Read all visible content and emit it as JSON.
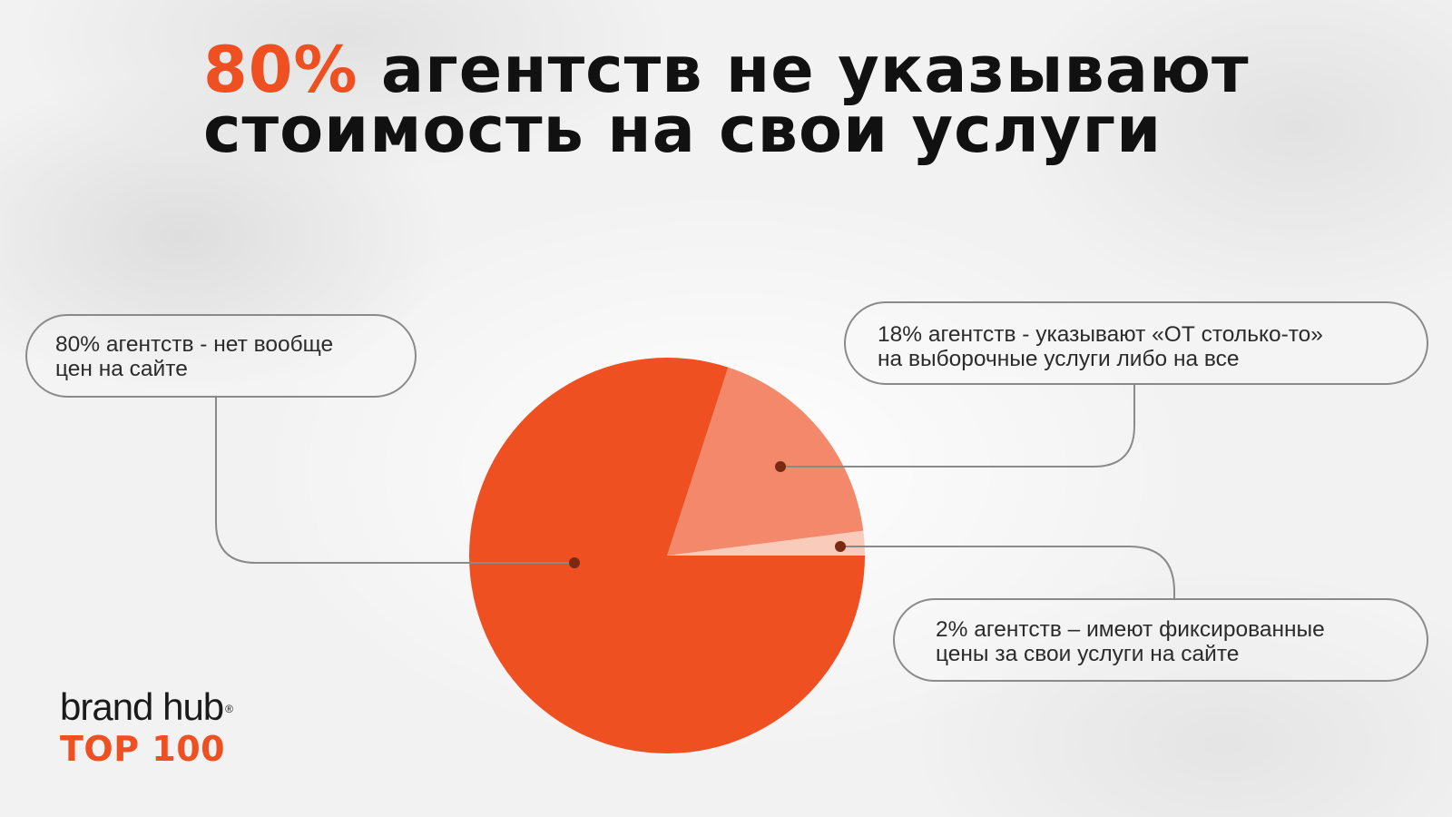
{
  "header": {
    "title_accent": "80%",
    "title_line1_rest": " агентств не указывают",
    "title_line2": "стоимость на свои услуги"
  },
  "chart_data": {
    "type": "pie",
    "slices": [
      {
        "key": "no-prices",
        "value": 80,
        "color": "#ee5022"
      },
      {
        "key": "from-prices",
        "value": 18,
        "color": "#f3896a"
      },
      {
        "key": "fixed-prices",
        "value": 2,
        "color": "#f8cbbb"
      }
    ],
    "annotations": [
      {
        "slice": "no-prices",
        "line1": "80% агентств - нет вообще",
        "line2": "цен на сайте"
      },
      {
        "slice": "from-prices",
        "line1": "18% агентств - указывают «ОТ столько-то»",
        "line2": "на выборочные услуги либо на все"
      },
      {
        "slice": "fixed-prices",
        "line1": "2% агентств – имеют фиксированные",
        "line2": "цены за свои услуги на сайте"
      }
    ],
    "colors": {
      "leader_line": "#8a8a8a",
      "marker": "#7a2a12"
    }
  },
  "brand": {
    "name": "brand hub",
    "registered": "®",
    "tagline": "TOP 100"
  }
}
